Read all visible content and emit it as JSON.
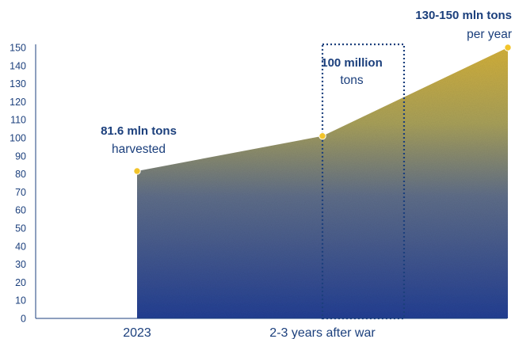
{
  "chart_data": {
    "type": "area",
    "xlim": [
      2023,
      2035
    ],
    "ylim": [
      0,
      150
    ],
    "y_ticks": [
      0,
      10,
      20,
      30,
      40,
      50,
      60,
      70,
      80,
      90,
      100,
      110,
      120,
      130,
      140,
      150
    ],
    "x_tick_labels": [
      {
        "x": 2023,
        "label": "2023"
      },
      {
        "x": 2028,
        "label": "2-3 years after war"
      }
    ],
    "points": [
      {
        "x": 2023,
        "y": 81.6
      },
      {
        "x": 2028,
        "y": 101
      },
      {
        "x": 2033,
        "y": 150
      }
    ],
    "annotations": [
      {
        "x": 2023,
        "y": 81.6,
        "bold": "81.6 mln tons",
        "normal": "harvested",
        "align": "middle"
      },
      {
        "x": 2028,
        "y": 101,
        "bold": "100 million",
        "normal": "tons",
        "align": "middle"
      },
      {
        "x": 2033,
        "y": 150,
        "bold": "130-150 mln tons",
        "normal": "per year",
        "align": "end"
      }
    ],
    "highlight_box": {
      "x_from": 2028,
      "x_to": 2030.2
    },
    "grid": false,
    "legend": "none",
    "colors": {
      "area_top": "#d4b13a",
      "area_bottom": "#233f94",
      "marker": "#f2c42a",
      "text": "#1b3f7c",
      "axis": "#1b3f7c"
    }
  }
}
